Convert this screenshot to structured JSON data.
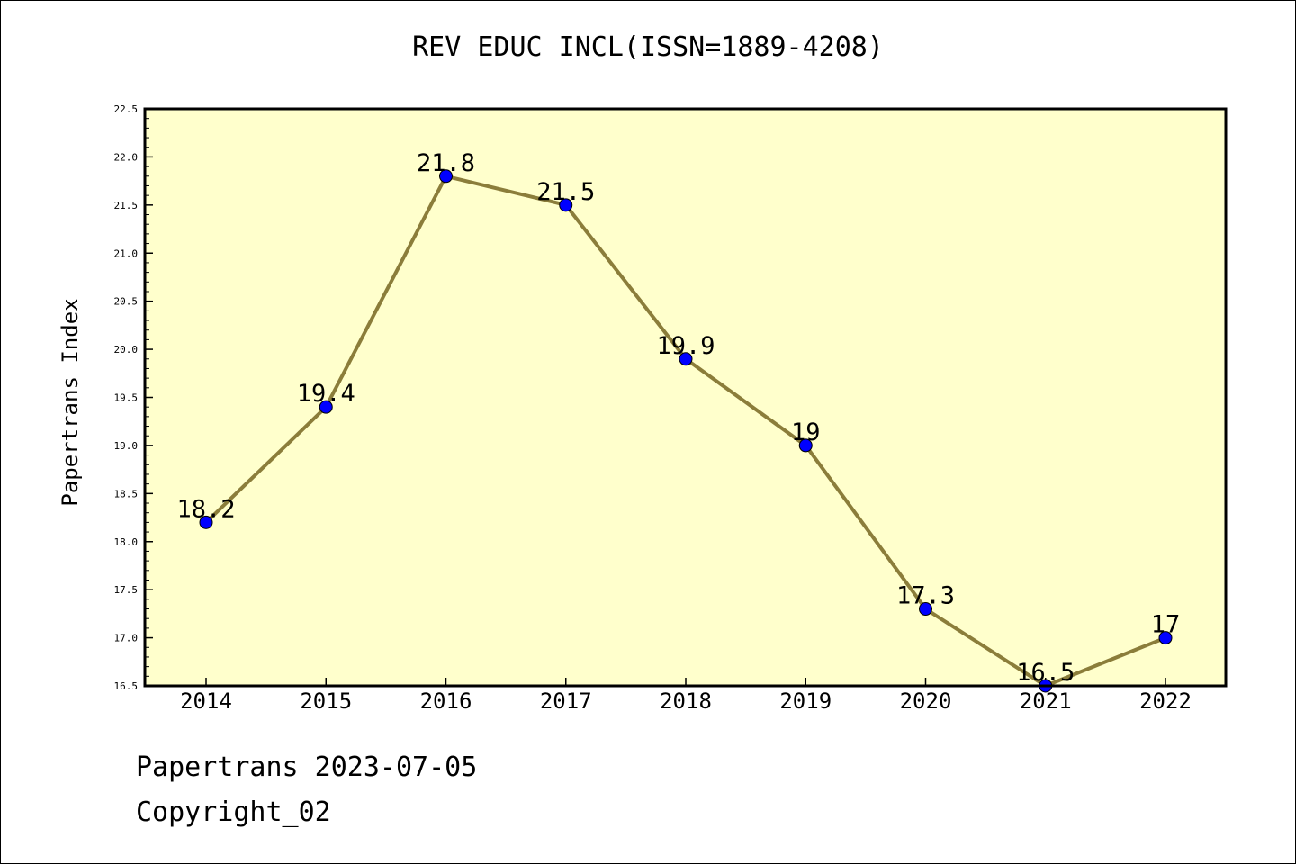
{
  "chart_data": {
    "type": "line",
    "title": "REV EDUC INCL(ISSN=1889-4208)",
    "xlabel": "",
    "ylabel": "Papertrans Index",
    "categories": [
      "2014",
      "2015",
      "2016",
      "2017",
      "2018",
      "2019",
      "2020",
      "2021",
      "2022"
    ],
    "series": [
      {
        "values": [
          18.2,
          19.4,
          21.8,
          21.5,
          19.9,
          19,
          17.3,
          16.5,
          17
        ],
        "point_labels": [
          "18.2",
          "19.4",
          "21.8",
          "21.5",
          "19.9",
          "19",
          "17.3",
          "16.5",
          "17"
        ]
      }
    ],
    "ylim": [
      16.5,
      22.5
    ],
    "yticks": [
      "16.5",
      "17.0",
      "17.5",
      "18.0",
      "18.5",
      "19.0",
      "19.5",
      "20.0",
      "20.5",
      "21.0",
      "21.5",
      "22.0",
      "22.5"
    ],
    "grid": false,
    "colors": {
      "plot_background": "#ffffcc",
      "line": "#8b7d3a",
      "marker": "#0000ff"
    }
  },
  "footer": {
    "date_line": "Papertrans 2023-07-05",
    "copyright": "Copyright_02"
  }
}
